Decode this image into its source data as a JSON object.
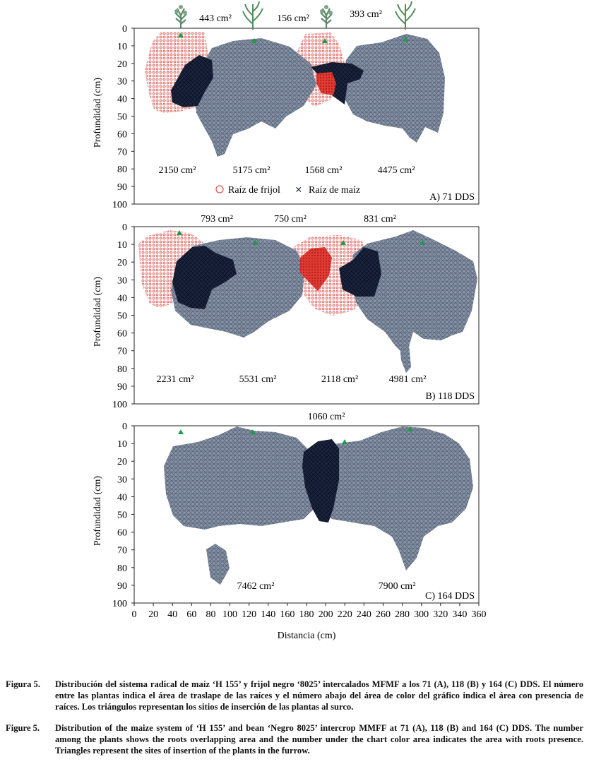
{
  "figure": {
    "panels": [
      {
        "id": "A",
        "label": "A) 71 DDS",
        "overlap_areas": [
          "443 cm²",
          "156 cm²",
          "393 cm²"
        ],
        "root_areas": [
          "2150 cm²",
          "5175 cm²",
          "1568 cm²",
          "4475 cm²"
        ],
        "has_plant_icons": true,
        "has_legend": true
      },
      {
        "id": "B",
        "label": "B) 118 DDS",
        "overlap_areas": [
          "793 cm²",
          "750 cm²",
          "831 cm²"
        ],
        "root_areas": [
          "2231 cm²",
          "5531 cm²",
          "2118 cm²",
          "4981 cm²"
        ],
        "has_plant_icons": false,
        "has_legend": false
      },
      {
        "id": "C",
        "label": "C) 164 DDS",
        "overlap_areas": [
          "1060 cm²"
        ],
        "root_areas": [
          "7462 cm²",
          "7900 cm²"
        ],
        "has_plant_icons": false,
        "has_legend": false
      }
    ],
    "legend": {
      "bean": "Raíz de frijol",
      "maize": "Raíz de maíz"
    },
    "y_axis_label": "Profundidad (cm)",
    "x_axis_label": "Distancia (cm)",
    "y_ticks": [
      0,
      10,
      20,
      30,
      40,
      50,
      60,
      70,
      80,
      90,
      100
    ],
    "x_ticks": [
      0,
      20,
      40,
      60,
      80,
      100,
      120,
      140,
      160,
      180,
      200,
      220,
      240,
      260,
      280,
      300,
      320,
      340,
      360
    ],
    "colors": {
      "maize_root": "#8a97aa",
      "overlap": "#1c2540",
      "bean_root": "#d9534f",
      "plant_marker": "#1f9a4a"
    }
  },
  "captions": [
    {
      "label": "Figura 5.",
      "text": "Distribución del sistema radical de maíz ‘H 155’ y frijol negro ‘8025’ intercalados MFMF a los 71 (A), 118 (B) y 164 (C) DDS. El número entre las plantas indica el área de traslape de las raíces y el número abajo del área de color del gráfico indica el área con presencia de raíces. Los triángulos representan los sitios de inserción de las plantas al surco."
    },
    {
      "label": "Figure 5.",
      "text": "Distribution of the maize system of ‘H 155’ and bean ‘Negro 8025’ intercrop MMFF at 71 (A), 118 (B) and 164 (C) DDS. The number among the plants shows the roots overlapping area and the number under the chart color area indicates the area with roots presence. Triangles represent the sites of insertion of the plants in the furrow."
    }
  ]
}
